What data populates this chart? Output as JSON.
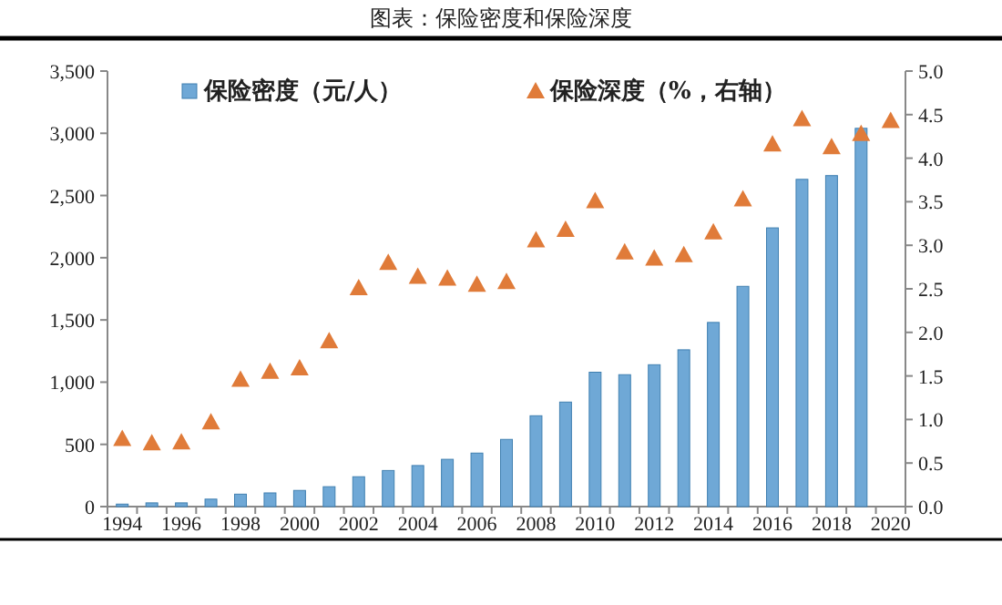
{
  "chart_data": {
    "type": "bar",
    "title": "图表：保险密度和保险深度",
    "categories": [
      "1994",
      null,
      "1996",
      null,
      "1998",
      null,
      "2000",
      null,
      "2002",
      null,
      "2004",
      null,
      "2006",
      null,
      "2008",
      null,
      "2010",
      null,
      "2012",
      null,
      "2014",
      null,
      "2016",
      null,
      "2018",
      null,
      "2020"
    ],
    "series": [
      {
        "name": "保险密度（元/人）",
        "color": "#6fa8d6",
        "values": [
          20,
          30,
          30,
          60,
          100,
          110,
          130,
          160,
          240,
          290,
          330,
          380,
          430,
          540,
          730,
          840,
          1080,
          1060,
          1140,
          1260,
          1480,
          1770,
          2240,
          2630,
          2660,
          3040,
          null
        ]
      },
      {
        "name": "保险深度（%，右轴）",
        "type": "scatter",
        "axis": "y2",
        "marker": "triangle",
        "color": "#e07b39",
        "values": [
          0.78,
          0.73,
          0.74,
          0.97,
          1.46,
          1.55,
          1.59,
          1.9,
          2.51,
          2.8,
          2.64,
          2.62,
          2.55,
          2.58,
          3.06,
          3.18,
          3.51,
          2.92,
          2.85,
          2.89,
          3.15,
          3.53,
          4.16,
          4.45,
          4.13,
          4.28,
          4.43
        ]
      }
    ],
    "ylim": [
      0,
      3500
    ],
    "yticks": [
      {
        "value": 0,
        "label": "0"
      },
      {
        "value": 500,
        "label": "500"
      },
      {
        "value": 1000,
        "label": "1,000"
      },
      {
        "value": 1500,
        "label": "1,500"
      },
      {
        "value": 2000,
        "label": "2,000"
      },
      {
        "value": 2500,
        "label": "2,500"
      },
      {
        "value": 3000,
        "label": "3,000"
      },
      {
        "value": 3500,
        "label": "3,500"
      }
    ],
    "y2lim": [
      0,
      5
    ],
    "y2ticks": [
      {
        "value": 0,
        "label": "0.0"
      },
      {
        "value": 0.5,
        "label": "0.5"
      },
      {
        "value": 1,
        "label": "1.0"
      },
      {
        "value": 1.5,
        "label": "1.5"
      },
      {
        "value": 2,
        "label": "2.0"
      },
      {
        "value": 2.5,
        "label": "2.5"
      },
      {
        "value": 3,
        "label": "3.0"
      },
      {
        "value": 3.5,
        "label": "3.5"
      },
      {
        "value": 4,
        "label": "4.0"
      },
      {
        "value": 4.5,
        "label": "4.5"
      },
      {
        "value": 5,
        "label": "5.0"
      }
    ],
    "grid": false,
    "legend": "top"
  }
}
